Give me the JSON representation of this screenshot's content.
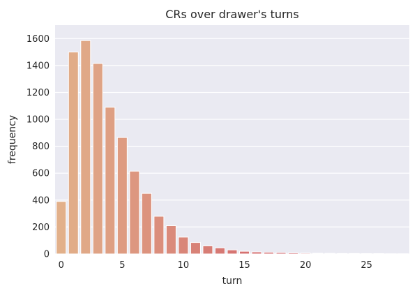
{
  "chart_data": {
    "type": "bar",
    "title": "CRs over drawer's turns",
    "xlabel": "turn",
    "ylabel": "frequency",
    "ylim": [
      0,
      1700
    ],
    "grid": true,
    "legend": "none",
    "x_ticks": [
      "0",
      "5",
      "10",
      "15",
      "20",
      "25"
    ],
    "y_ticks": [
      "0",
      "200",
      "400",
      "600",
      "800",
      "1000",
      "1200",
      "1400",
      "1600"
    ],
    "categories": [
      0,
      1,
      2,
      3,
      4,
      5,
      6,
      7,
      8,
      9,
      10,
      11,
      12,
      13,
      14,
      15,
      16,
      17,
      18,
      19,
      20,
      21,
      22,
      23,
      24,
      25,
      26,
      27,
      28
    ],
    "values": [
      390,
      1500,
      1585,
      1415,
      1090,
      865,
      615,
      450,
      280,
      210,
      125,
      85,
      60,
      45,
      30,
      20,
      15,
      12,
      10,
      8,
      6,
      5,
      4,
      3,
      3,
      2,
      2,
      1,
      1
    ],
    "colors": {
      "background": "#eaeaf2",
      "grid": "#ffffff",
      "palette_start": "#e2b08a",
      "palette_end": "#c93a5a"
    }
  }
}
